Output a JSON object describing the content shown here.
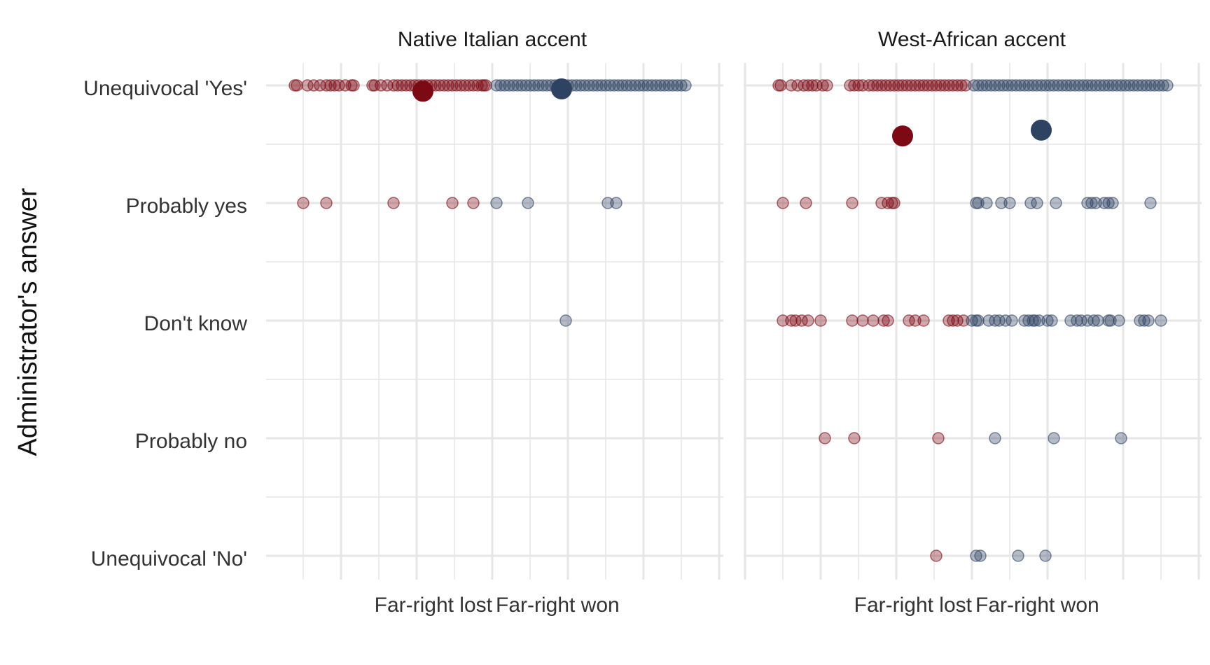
{
  "chart_data": {
    "type": "scatter",
    "ylabel": "Administrator's answer",
    "y_categories": [
      "Unequivocal 'Yes'",
      "Probably yes",
      "Don't know",
      "Probably no",
      "Unequivocal 'No'"
    ],
    "x_categories": [
      "Far-right lost",
      "Far-right won"
    ],
    "x_range": [
      -1,
      1
    ],
    "grid": true,
    "legend": "none",
    "colors": {
      "lost": "#7b0a14",
      "won": "#2e4262",
      "grid": "#e6e6e6"
    },
    "panels": [
      {
        "title": "Native Italian accent",
        "points": {
          "lost": {
            "Unequivocal 'Yes'": [
              -0.94,
              -0.93,
              -0.88,
              -0.85,
              -0.82,
              -0.79,
              -0.77,
              -0.75,
              -0.73,
              -0.7,
              -0.67,
              -0.66,
              -0.57,
              -0.56,
              -0.53,
              -0.5,
              -0.47,
              -0.45,
              -0.43,
              -0.41,
              -0.39,
              -0.37,
              -0.35,
              -0.33,
              -0.31,
              -0.29,
              -0.27,
              -0.25,
              -0.23,
              -0.21,
              -0.19,
              -0.17,
              -0.15,
              -0.13,
              -0.11,
              -0.09,
              -0.07,
              -0.05,
              -0.04,
              -0.03
            ],
            "Probably yes": [
              -0.9,
              -0.79,
              -0.47,
              -0.19,
              -0.09
            ],
            "Don't know": [],
            "Probably no": [],
            "Unequivocal 'No'": []
          },
          "won": {
            "Unequivocal 'Yes'": [
              0.02,
              0.04,
              0.06,
              0.08,
              0.1,
              0.12,
              0.14,
              0.16,
              0.18,
              0.2,
              0.22,
              0.24,
              0.26,
              0.28,
              0.3,
              0.32,
              0.34,
              0.36,
              0.38,
              0.4,
              0.42,
              0.44,
              0.46,
              0.48,
              0.5,
              0.52,
              0.54,
              0.56,
              0.58,
              0.6,
              0.62,
              0.64,
              0.66,
              0.68,
              0.7,
              0.72,
              0.74,
              0.76,
              0.78,
              0.8,
              0.82,
              0.84,
              0.86,
              0.88,
              0.9,
              0.92
            ],
            "Probably yes": [
              0.02,
              0.17,
              0.55,
              0.59
            ],
            "Don't know": [
              0.35
            ],
            "Probably no": [],
            "Unequivocal 'No'": []
          }
        },
        "means": [
          {
            "group": "lost",
            "x": -0.33,
            "answer_score": 4.95,
            "ci": [
              4.93,
              4.97
            ]
          },
          {
            "group": "won",
            "x": 0.33,
            "answer_score": 4.97,
            "ci": [
              4.95,
              4.99
            ]
          }
        ]
      },
      {
        "title": "West-African accent",
        "points": {
          "lost": {
            "Unequivocal 'Yes'": [
              -0.92,
              -0.91,
              -0.86,
              -0.83,
              -0.8,
              -0.78,
              -0.76,
              -0.74,
              -0.71,
              -0.69,
              -0.58,
              -0.56,
              -0.54,
              -0.52,
              -0.49,
              -0.47,
              -0.45,
              -0.43,
              -0.41,
              -0.39,
              -0.37,
              -0.35,
              -0.33,
              -0.31,
              -0.29,
              -0.27,
              -0.25,
              -0.23,
              -0.21,
              -0.19,
              -0.17,
              -0.15,
              -0.13,
              -0.11,
              -0.09,
              -0.07,
              -0.05,
              -0.03
            ],
            "Probably yes": [
              -0.9,
              -0.79,
              -0.57,
              -0.43,
              -0.4,
              -0.38,
              -0.37
            ],
            "Don't know": [
              -0.9,
              -0.86,
              -0.84,
              -0.81,
              -0.78,
              -0.72,
              -0.57,
              -0.52,
              -0.47,
              -0.42,
              -0.4,
              -0.3,
              -0.27,
              -0.23,
              -0.11,
              -0.09,
              -0.07,
              -0.04
            ],
            "Probably no": [
              -0.7,
              -0.56,
              -0.16
            ],
            "Unequivocal 'No'": [
              -0.17
            ]
          },
          "won": {
            "Unequivocal 'Yes'": [
              0.01,
              0.03,
              0.05,
              0.07,
              0.09,
              0.11,
              0.13,
              0.15,
              0.17,
              0.19,
              0.21,
              0.23,
              0.25,
              0.27,
              0.29,
              0.31,
              0.33,
              0.35,
              0.37,
              0.39,
              0.41,
              0.43,
              0.45,
              0.47,
              0.49,
              0.51,
              0.53,
              0.55,
              0.57,
              0.59,
              0.61,
              0.63,
              0.65,
              0.67,
              0.69,
              0.71,
              0.73,
              0.75,
              0.77,
              0.79,
              0.81,
              0.83,
              0.85,
              0.87,
              0.89,
              0.91,
              0.93
            ],
            "Probably yes": [
              0.02,
              0.03,
              0.07,
              0.14,
              0.18,
              0.28,
              0.31,
              0.4,
              0.55,
              0.57,
              0.59,
              0.63,
              0.65,
              0.67,
              0.85
            ],
            "Don't know": [
              0,
              0.02,
              0.03,
              0.08,
              0.11,
              0.13,
              0.16,
              0.19,
              0.25,
              0.27,
              0.29,
              0.3,
              0.32,
              0.36,
              0.38,
              0.47,
              0.5,
              0.52,
              0.55,
              0.58,
              0.6,
              0.65,
              0.66,
              0.7,
              0.8,
              0.82,
              0.84,
              0.9
            ],
            "Probably no": [
              0.11,
              0.39,
              0.71
            ],
            "Unequivocal 'No'": [
              0.02,
              0.04,
              0.22,
              0.35
            ]
          }
        },
        "means": [
          {
            "group": "lost",
            "x": -0.33,
            "answer_score": 4.57,
            "ci": [
              4.5,
              4.64
            ]
          },
          {
            "group": "won",
            "x": 0.33,
            "answer_score": 4.62,
            "ci": [
              4.55,
              4.69
            ]
          }
        ]
      }
    ]
  }
}
